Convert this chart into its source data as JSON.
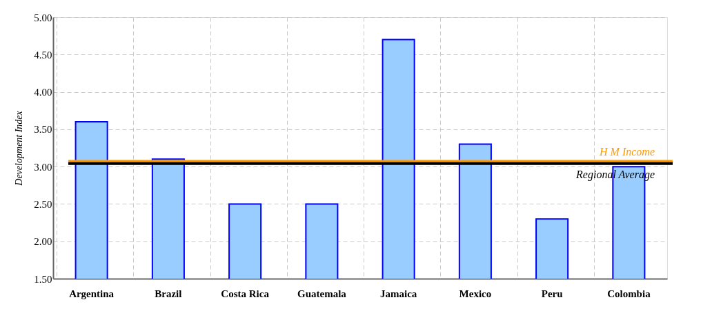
{
  "chart_data": {
    "type": "bar",
    "ylabel": "Development Index",
    "categories": [
      "Argentina",
      "Brazil",
      "Costa Rica",
      "Guatemala",
      "Jamaica",
      "Mexico",
      "Peru",
      "Colombia"
    ],
    "values": [
      3.6,
      3.1,
      2.5,
      2.5,
      4.7,
      3.3,
      2.3,
      3.0
    ],
    "color": "#99ccff",
    "ylim": [
      1.5,
      5.0
    ],
    "yticks": [
      {
        "value": 1.5,
        "label": "1.50"
      },
      {
        "value": 2.0,
        "label": "2.00"
      },
      {
        "value": 2.5,
        "label": "2.50"
      },
      {
        "value": 3.0,
        "label": "3.00"
      },
      {
        "value": 3.5,
        "label": "3.50"
      },
      {
        "value": 4.0,
        "label": "4.00"
      },
      {
        "value": 4.5,
        "label": "4.50"
      },
      {
        "value": 5.0,
        "label": "5.00"
      }
    ],
    "ref_lines": [
      {
        "axis": "y",
        "value": 3.07,
        "label": "H M Income",
        "color": "#ff9900"
      },
      {
        "axis": "y",
        "value": 3.04,
        "label": "Regional Average",
        "color": "#000000"
      }
    ],
    "grid": true
  }
}
